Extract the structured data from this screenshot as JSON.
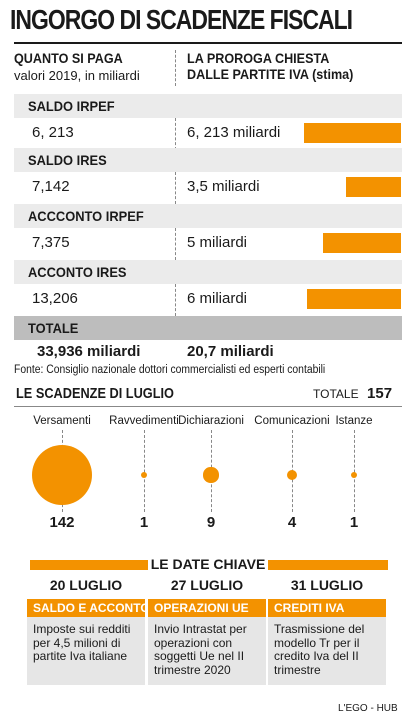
{
  "title": "INGORGO DI SCADENZE FISCALI",
  "table": {
    "left_header": "QUANTO SI PAGA",
    "left_sub": "valori 2019, in miliardi",
    "right_header_1": "LA PROROGA CHIESTA",
    "right_header_2": "DALLE PARTITE IVA (stima)",
    "rows": [
      {
        "label": "SALDO IRPEF",
        "paid": "6, 213",
        "proroga": "6, 213 miliardi",
        "proroga_value": 6.213
      },
      {
        "label": "SALDO IRES",
        "paid": "7,142",
        "proroga": "3,5 miliardi",
        "proroga_value": 3.5
      },
      {
        "label": "ACCCONTO IRPEF",
        "paid": "7,375",
        "proroga": "5 miliardi",
        "proroga_value": 5
      },
      {
        "label": "ACCONTO IRES",
        "paid": "13,206",
        "proroga": "6 miliardi",
        "proroga_value": 6
      }
    ],
    "total_label": "TOTALE",
    "total_paid": "33,936 miliardi",
    "total_proroga": "20,7 miliardi",
    "source": "Fonte: Consiglio nazionale dottori commercialisti ed esperti contabili"
  },
  "chart_data": {
    "type": "bar",
    "title": "",
    "categories": [
      "SALDO IRPEF",
      "SALDO IRES",
      "ACCCONTO IRPEF",
      "ACCONTO IRES"
    ],
    "values": [
      6.213,
      3.5,
      5,
      6
    ],
    "xlabel": "",
    "ylabel": "",
    "ylim": [
      0,
      6.213
    ]
  },
  "july": {
    "title": "LE SCADENZE DI LUGLIO",
    "total_label": "TOTALE",
    "total_value": "157",
    "items": [
      {
        "label": "Versamenti",
        "count": "142",
        "value": 142
      },
      {
        "label": "Ravvedimenti",
        "count": "1",
        "value": 1
      },
      {
        "label": "Dichiarazioni",
        "count": "9",
        "value": 9
      },
      {
        "label": "Comunicazioni",
        "count": "4",
        "value": 4
      },
      {
        "label": "Istanze",
        "count": "1",
        "value": 1
      }
    ]
  },
  "key_dates": {
    "title": "LE DATE CHIAVE",
    "items": [
      {
        "date": "20 LUGLIO",
        "heading": "SALDO E ACCONTO",
        "text": "Imposte sui redditi per 4,5 milioni di partite Iva italiane"
      },
      {
        "date": "27 LUGLIO",
        "heading": "OPERAZIONI UE",
        "text": "Invio Intrastat per operazioni con soggetti Ue nel II trimestre 2020"
      },
      {
        "date": "31 LUGLIO",
        "heading": "CREDITI IVA",
        "text": "Trasmissione del modello Tr per il credito Iva del II trimestre"
      }
    ]
  },
  "accent_color": "#f39200",
  "credit": "L'EGO - HUB"
}
